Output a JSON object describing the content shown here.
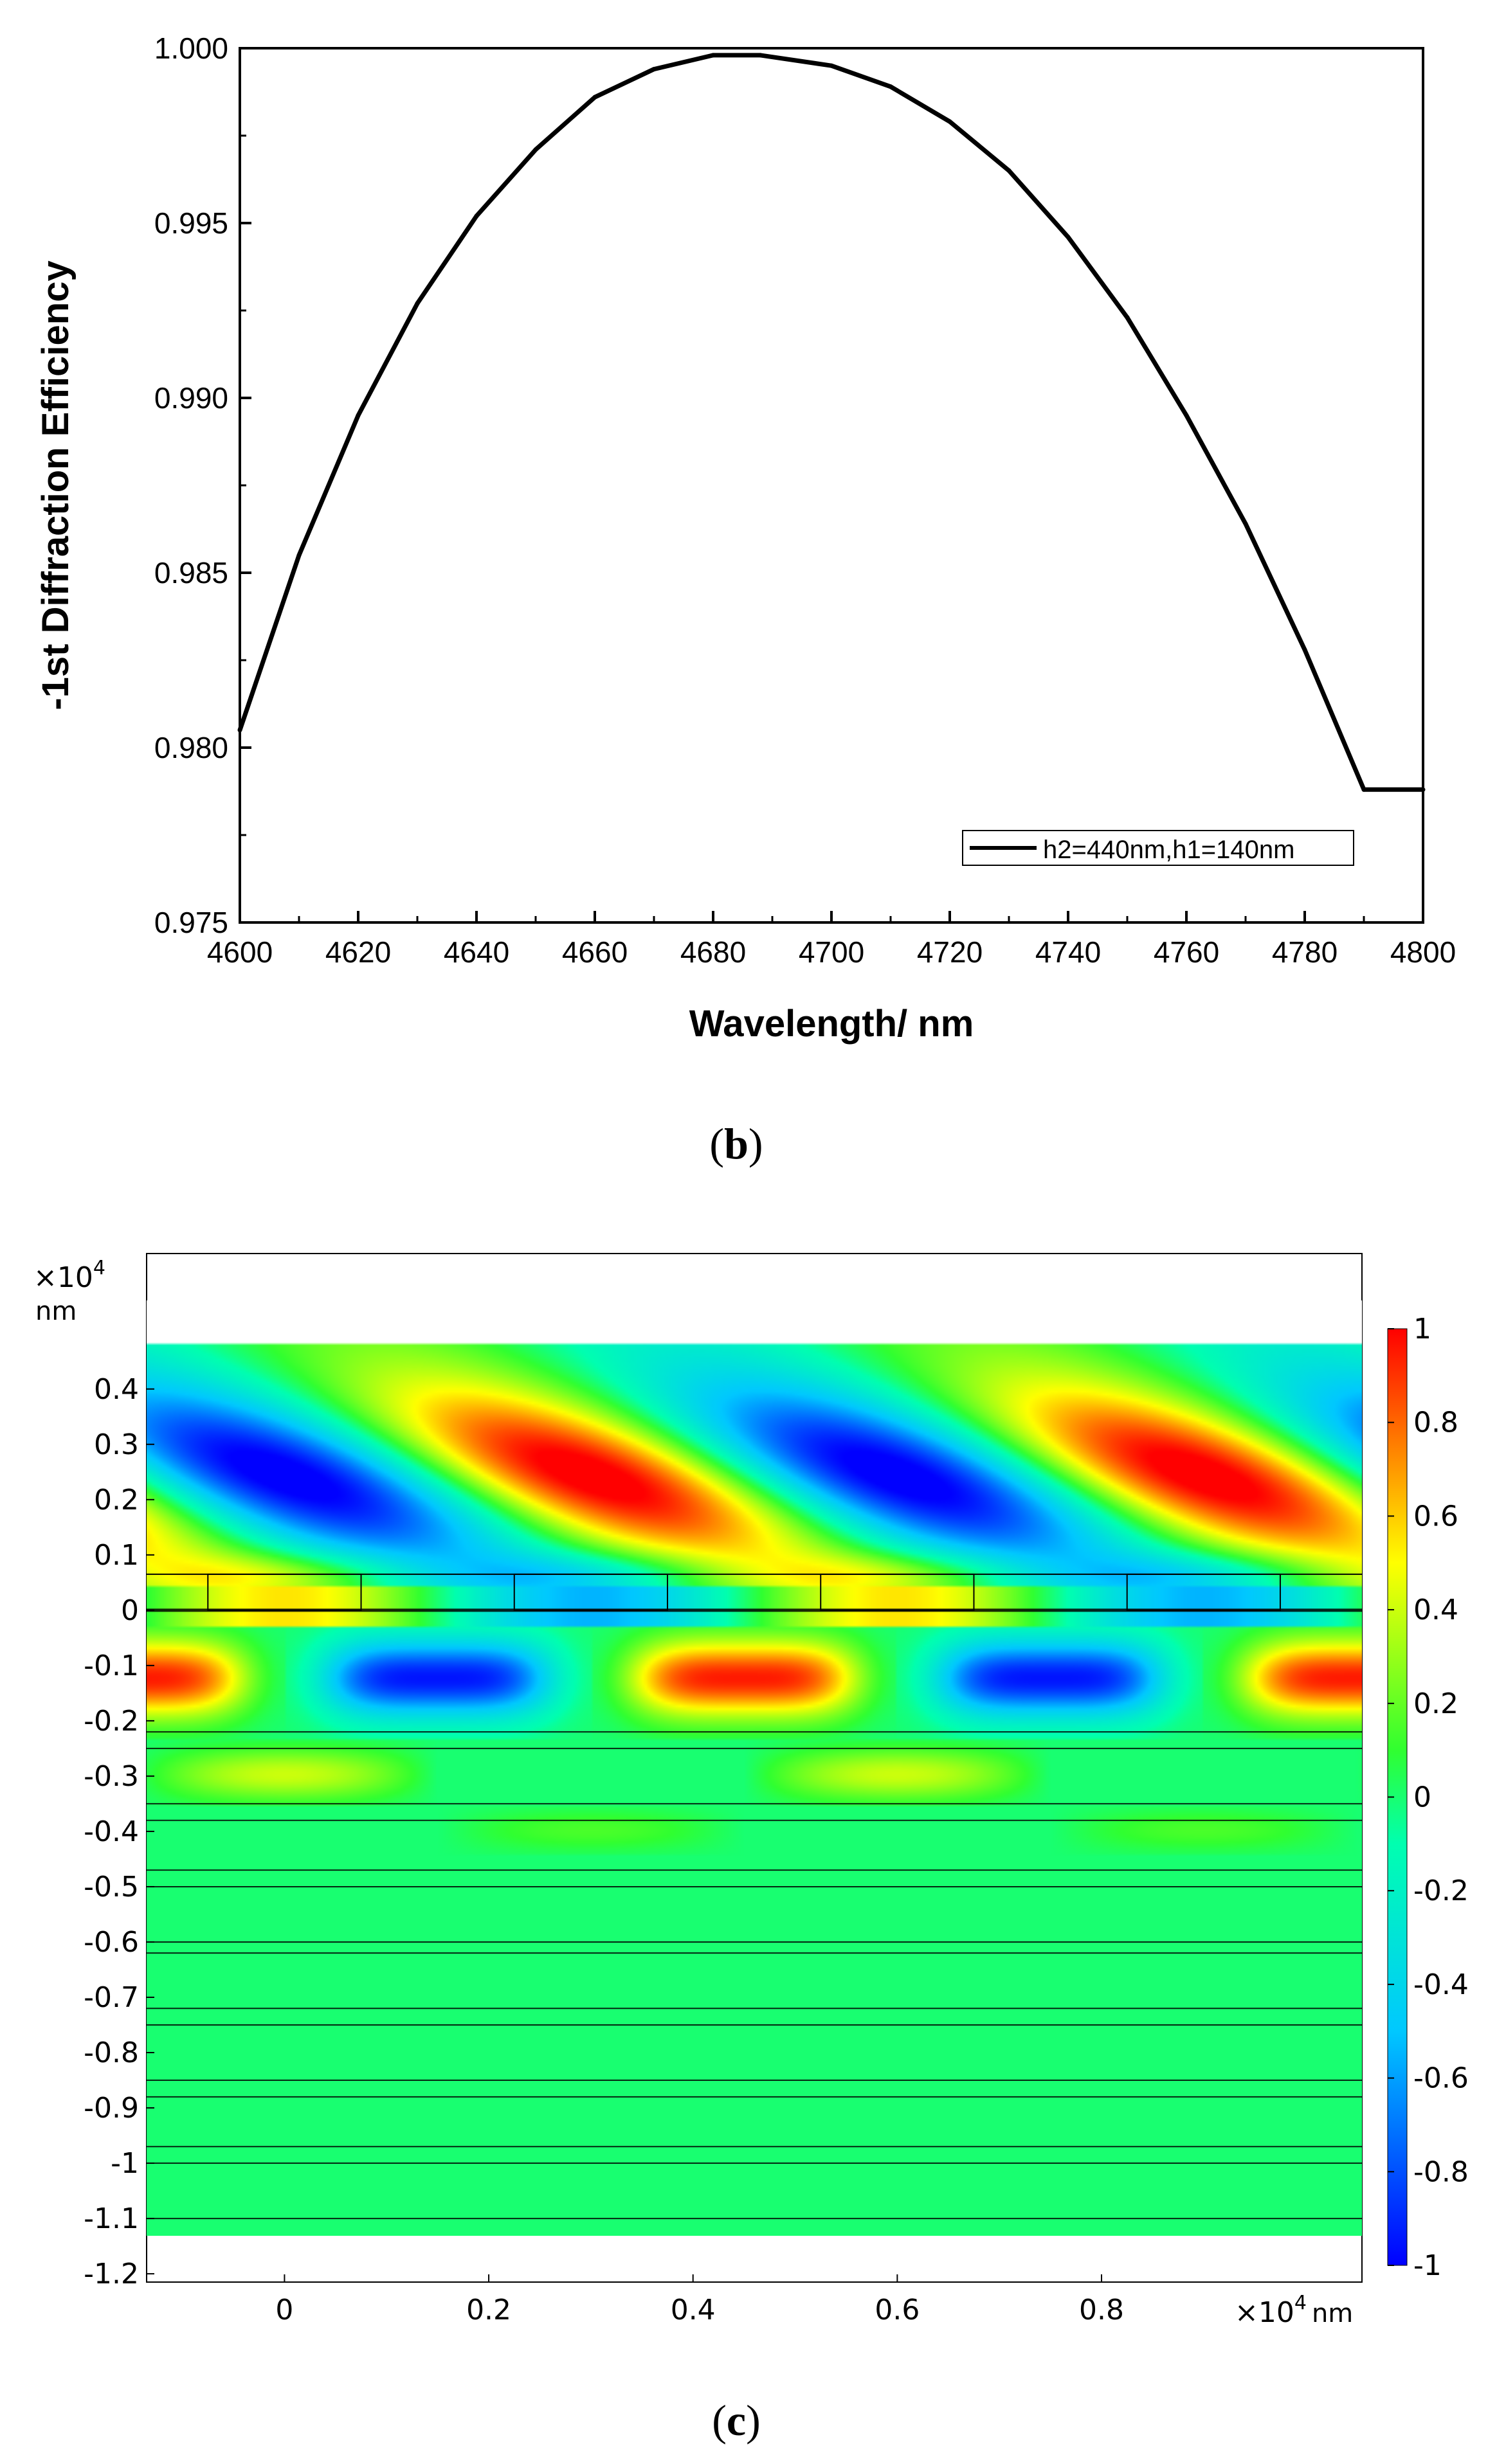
{
  "panel_b": {
    "caption": "(b)",
    "caption_letter": "b",
    "chart_data": {
      "type": "line",
      "title": "",
      "xlabel": "Wavelength/ nm",
      "ylabel": "-1st Diffraction Efficiency",
      "xlim": [
        4600,
        4800
      ],
      "ylim": [
        0.975,
        1.0
      ],
      "x_ticks": [
        "4600",
        "4620",
        "4640",
        "4660",
        "4680",
        "4700",
        "4720",
        "4740",
        "4760",
        "4780",
        "4800"
      ],
      "y_ticks": [
        "0.975",
        "0.980",
        "0.985",
        "0.990",
        "0.995",
        "1.000"
      ],
      "legend": "bottom-right",
      "series": [
        {
          "name": "h2=440nm,h1=140nm",
          "color": "#000000",
          "x": [
            4600,
            4610,
            4620,
            4630,
            4640,
            4650,
            4660,
            4670,
            4680,
            4688,
            4700,
            4710,
            4720,
            4730,
            4740,
            4750,
            4760,
            4770,
            4780,
            4790,
            4800
          ],
          "y": [
            0.9805,
            0.9855,
            0.9895,
            0.9927,
            0.9952,
            0.9971,
            0.9986,
            0.9994,
            0.9998,
            0.9998,
            0.9995,
            0.9989,
            0.9979,
            0.9965,
            0.9946,
            0.9923,
            0.9895,
            0.9864,
            0.9828,
            0.9788,
            0.9788
          ]
        }
      ]
    }
  },
  "panel_c": {
    "caption": "(c)",
    "caption_letter": "c",
    "chart_data": {
      "type": "heatmap",
      "title": "",
      "x_multiplier": "×10",
      "y_multiplier": "×10",
      "exponent": "4",
      "x_unit": "nm",
      "y_unit": "nm",
      "xlim": [
        -0.135,
        1.055
      ],
      "ylim": [
        -1.215,
        0.645
      ],
      "x_ticks": [
        "0",
        "0.2",
        "0.4",
        "0.6",
        "0.8"
      ],
      "y_ticks": [
        "0.4",
        "0.3",
        "0.2",
        "0.1",
        "0",
        "-0.1",
        "-0.2",
        "-0.3",
        "-0.4",
        "-0.5",
        "-0.6",
        "-0.7",
        "-0.8",
        "-0.9",
        "-1",
        "-1.1",
        "-1.2"
      ],
      "colorbar_range": [
        -1,
        1
      ],
      "colorbar_ticks": [
        "1",
        "0.8",
        "0.6",
        "0.4",
        "0.2",
        "0",
        "-0.2",
        "-0.4",
        "-0.6",
        "-0.8",
        "-1"
      ],
      "colormap": "rainbow",
      "colormap_stops": [
        "#0000ff",
        "#00ffff",
        "#00ff80",
        "#ffff00",
        "#ff0000"
      ],
      "field_top": 0.56,
      "field_bottom": -1.2,
      "grating_ridges": [
        [
          -0.075,
          0.075
        ],
        [
          0.225,
          0.375
        ],
        [
          0.525,
          0.675
        ],
        [
          0.825,
          0.975
        ]
      ],
      "grating_top": 0.065,
      "layer_lines": [
        0.0,
        -0.22,
        -0.25,
        -0.35,
        -0.38,
        -0.47,
        -0.5,
        -0.6,
        -0.62,
        -0.72,
        -0.75,
        -0.85,
        -0.88,
        -0.97,
        -1.0,
        -1.1,
        -1.15
      ]
    }
  }
}
